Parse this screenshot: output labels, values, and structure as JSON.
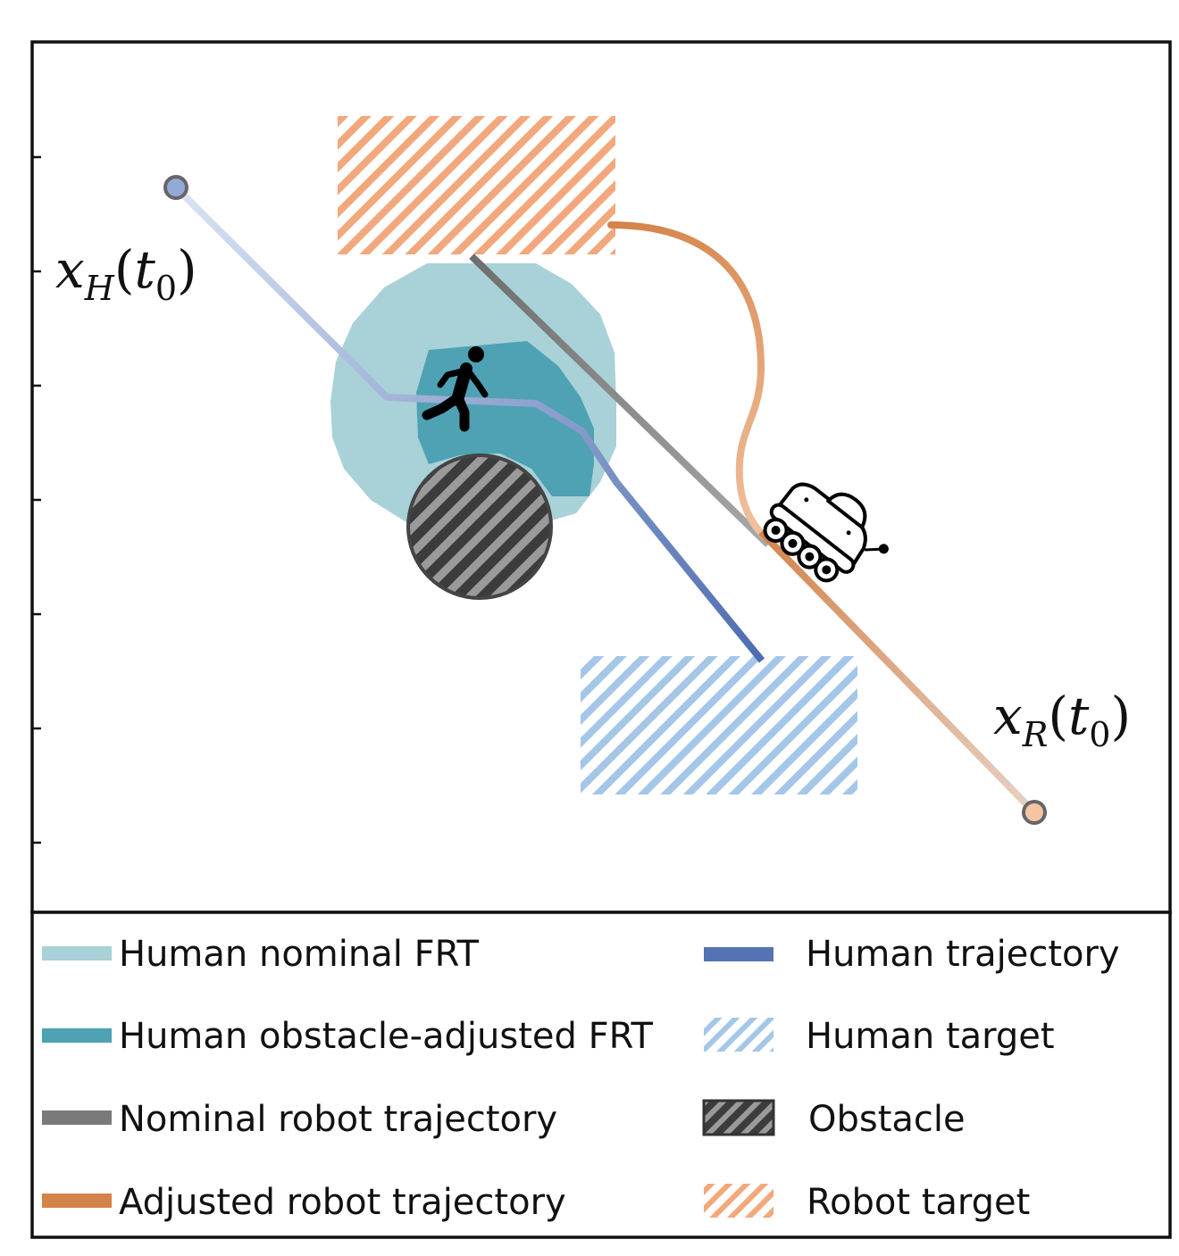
{
  "colors": {
    "human_nominal_frt": "#a9d1d8",
    "human_obstacle_adjusted_frt": "#4ea2b3",
    "nominal_robot_trajectory": "#7a7a7a",
    "adjusted_robot_trajectory": "#d4834a",
    "human_trajectory": "#5573b4",
    "human_target": "#a4c6e8",
    "obstacle": "#6f6f6f",
    "robot_target": "#f2a87c",
    "human_start_marker": "#93a9d8",
    "robot_start_marker": "#f4c4a4"
  },
  "labels": {
    "human_start": {
      "var": "x",
      "sub": "H",
      "arg": "t",
      "arg_sub": "0"
    },
    "robot_start": {
      "var": "x",
      "sub": "R",
      "arg": "t",
      "arg_sub": "0"
    }
  },
  "legend": {
    "left": [
      {
        "label": "Human nominal FRT",
        "icon": "swatch-light-teal"
      },
      {
        "label": "Human obstacle-adjusted FRT",
        "icon": "swatch-dark-teal"
      },
      {
        "label": "Nominal robot trajectory",
        "icon": "swatch-gray"
      },
      {
        "label": "Adjusted robot trajectory",
        "icon": "swatch-orange"
      }
    ],
    "right": [
      {
        "label": "Human trajectory",
        "icon": "swatch-blue"
      },
      {
        "label": "Human target",
        "icon": "hatch-blue"
      },
      {
        "label": "Obstacle",
        "icon": "hatch-gray"
      },
      {
        "label": "Robot target",
        "icon": "hatch-orange"
      }
    ]
  },
  "icons": {
    "human": "walking-person-icon",
    "robot": "rover-robot-icon"
  }
}
